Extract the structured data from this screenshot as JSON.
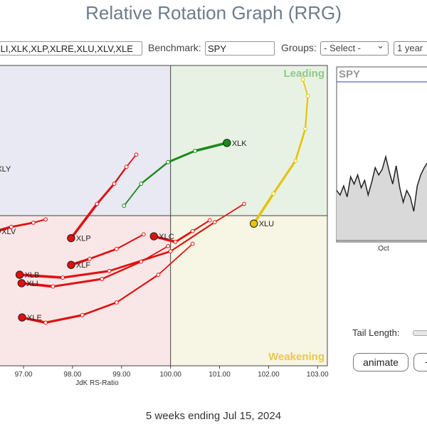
{
  "title": "Relative Rotation Graph (RRG)",
  "controls": {
    "symbols_value": "XLI,XLK,XLP,XLRE,XLU,XLV,XLE",
    "benchmark_label": "Benchmark:",
    "benchmark_value": "SPY",
    "groups_label": "Groups:",
    "groups_value": "- Select -",
    "period_value": "1 year",
    "chevron": "⌄"
  },
  "quadrants": {
    "leading": "Leading",
    "weakening": "Weakening",
    "colors": {
      "leading": "#e8f2e4",
      "weakening": "#f7f5e3",
      "lagging": "#f9e7e7",
      "improving": "#e9e9f4"
    }
  },
  "chart_data": {
    "type": "scatter",
    "title": "",
    "xlabel": "JdK RS-Ratio",
    "ylabel": "",
    "xlim": [
      96.2,
      103.2
    ],
    "ylim": [
      96.8,
      103.2
    ],
    "center": [
      100,
      100
    ],
    "x_ticks": [
      "97.00",
      "98.00",
      "99.00",
      "100.00",
      "101.00",
      "102.00",
      "103.00"
    ],
    "series": [
      {
        "name": "XLY",
        "color": "#2b3fd8",
        "points": [
          [
            96.35,
            101.0
          ]
        ]
      },
      {
        "name": "XLK",
        "color": "#1a8a1a",
        "points": [
          [
            99.05,
            100.21
          ],
          [
            99.4,
            100.68
          ],
          [
            99.95,
            101.14
          ],
          [
            100.5,
            101.38
          ],
          [
            101.15,
            101.55
          ]
        ]
      },
      {
        "name": "XLU",
        "color": "#e6c20a",
        "points": [
          [
            102.7,
            102.9
          ],
          [
            102.8,
            102.55
          ],
          [
            102.75,
            101.85
          ],
          [
            102.55,
            101.17
          ],
          [
            102.1,
            100.47
          ],
          [
            101.7,
            99.83
          ]
        ]
      },
      {
        "name": "XLV",
        "color": "#e01010",
        "points": [
          [
            97.45,
            99.92
          ],
          [
            97.2,
            99.85
          ],
          [
            96.75,
            99.76
          ],
          [
            96.45,
            99.67
          ]
        ]
      },
      {
        "name": "XLP",
        "color": "#e01010",
        "points": [
          [
            99.3,
            101.3
          ],
          [
            99.1,
            101.04
          ],
          [
            98.85,
            100.68
          ],
          [
            98.5,
            100.25
          ],
          [
            97.97,
            99.52
          ]
        ]
      },
      {
        "name": "XLC",
        "color": "#e01010",
        "points": [
          [
            100.8,
            99.9
          ],
          [
            100.45,
            99.67
          ],
          [
            100.1,
            99.44
          ],
          [
            99.66,
            99.56
          ]
        ]
      },
      {
        "name": "XLF",
        "color": "#e01010",
        "points": [
          [
            99.45,
            99.6
          ],
          [
            98.9,
            99.29
          ],
          [
            98.35,
            99.08
          ],
          [
            97.97,
            98.95
          ]
        ]
      },
      {
        "name": "XLB",
        "color": "#e01010",
        "points": [
          [
            101.5,
            100.25
          ],
          [
            100.9,
            99.86
          ],
          [
            100.0,
            99.24
          ],
          [
            98.75,
            98.82
          ],
          [
            97.8,
            98.68
          ],
          [
            96.92,
            98.74
          ]
        ]
      },
      {
        "name": "XLI",
        "color": "#e01010",
        "points": [
          [
            99.95,
            99.35
          ],
          [
            99.4,
            99.02
          ],
          [
            98.6,
            98.65
          ],
          [
            97.6,
            98.49
          ],
          [
            96.96,
            98.56
          ]
        ]
      },
      {
        "name": "XLE",
        "color": "#e01010",
        "points": [
          [
            100.45,
            99.4
          ],
          [
            99.75,
            98.74
          ],
          [
            98.9,
            98.15
          ],
          [
            98.2,
            97.88
          ],
          [
            97.45,
            97.72
          ],
          [
            96.97,
            97.83
          ]
        ]
      }
    ]
  },
  "spy_panel": {
    "label": "SPY",
    "x_tick": "Oct",
    "values": [
      0.55,
      0.5,
      0.6,
      0.48,
      0.7,
      0.62,
      0.72,
      0.58,
      0.66,
      0.5,
      0.64,
      0.8,
      0.72,
      0.78,
      0.92,
      0.76,
      0.62,
      0.82,
      0.58,
      0.42,
      0.55,
      0.48,
      0.32,
      0.6,
      0.72,
      0.8,
      0.86,
      0.78
    ]
  },
  "tail": {
    "label": "Tail Length:"
  },
  "buttons": {
    "animate": "animate",
    "second": "+"
  },
  "footer": "5 weeks ending Jul 15, 2024"
}
